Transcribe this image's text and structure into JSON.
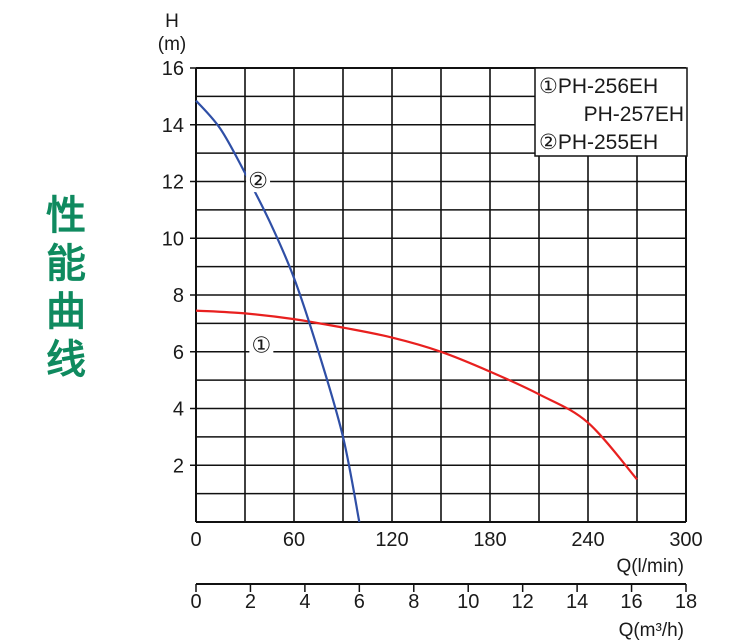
{
  "side_title": [
    "性",
    "能",
    "曲",
    "线"
  ],
  "colors": {
    "grid": "#111111",
    "series_1": "#e8201f",
    "series_2": "#2f4fa6",
    "title": "#0f8a5f"
  },
  "chart_data": {
    "type": "line",
    "y_axis": {
      "label_top": "H",
      "label_unit": "(m)",
      "range": [
        0,
        16
      ],
      "ticks": [
        2,
        4,
        6,
        8,
        10,
        12,
        14,
        16
      ]
    },
    "x_axis_primary": {
      "label": "Q(l/min)",
      "range": [
        0,
        300
      ],
      "ticks": [
        0,
        60,
        120,
        180,
        240,
        300
      ]
    },
    "x_axis_secondary": {
      "label": "Q(m³/h)",
      "range": [
        0,
        18
      ],
      "ticks": [
        0,
        2,
        4,
        6,
        8,
        10,
        12,
        14,
        16,
        18
      ]
    },
    "grid": true,
    "legend": {
      "position": "top-right",
      "entries": [
        "①PH-256EH",
        "PH-257EH",
        "②PH-255EH"
      ]
    },
    "series": [
      {
        "name": "①",
        "color": "#e8201f",
        "x": [
          0,
          30,
          60,
          90,
          120,
          150,
          180,
          210,
          240,
          270
        ],
        "y": [
          7.45,
          7.35,
          7.15,
          6.85,
          6.5,
          6.0,
          5.3,
          4.5,
          3.5,
          1.5
        ]
      },
      {
        "name": "②",
        "color": "#2f4fa6",
        "x": [
          0,
          15,
          30,
          45,
          60,
          75,
          90,
          100
        ],
        "y": [
          14.85,
          13.85,
          12.3,
          10.6,
          8.6,
          6.0,
          3.0,
          0
        ]
      }
    ],
    "curve_labels": [
      {
        "text": "②",
        "x": 38,
        "y": 12.05
      },
      {
        "text": "①",
        "x": 40,
        "y": 6.25
      }
    ]
  }
}
